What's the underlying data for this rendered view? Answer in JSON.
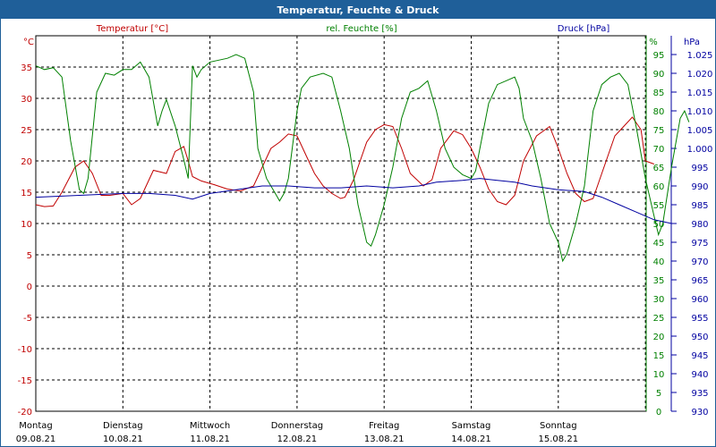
{
  "window": {
    "title": "Temperatur, Feuchte & Druck"
  },
  "colors": {
    "title_bg": "#1f5f99",
    "temperature": "#c00000",
    "humidity": "#008000",
    "pressure": "#0000a0",
    "grid": "#000000"
  },
  "chart_data": {
    "type": "line",
    "title": "Temperatur, Feuchte & Druck",
    "x_range": [
      0,
      7
    ],
    "x_ticks": [
      {
        "x": 0,
        "day": "Montag",
        "date": "09.08.21"
      },
      {
        "x": 1,
        "day": "Dienstag",
        "date": "10.08.21"
      },
      {
        "x": 2,
        "day": "Mittwoch",
        "date": "11.08.21"
      },
      {
        "x": 3,
        "day": "Donnerstag",
        "date": "12.08.21"
      },
      {
        "x": 4,
        "day": "Freitag",
        "date": "13.08.21"
      },
      {
        "x": 5,
        "day": "Samstag",
        "date": "14.08.21"
      },
      {
        "x": 6,
        "day": "Sonntag",
        "date": "15.08.21"
      }
    ],
    "grid": true,
    "axes": {
      "temperature": {
        "label": "Temperatur [°C]",
        "unit": "°C",
        "range": [
          -20,
          40
        ],
        "ticks": [
          "-20",
          "-15",
          "-10",
          "-5",
          "0",
          "5",
          "10",
          "15",
          "20",
          "25",
          "30",
          "35"
        ]
      },
      "humidity": {
        "label": "rel. Feuchte [%]",
        "unit": "%",
        "range": [
          0,
          100
        ],
        "ticks": [
          "0",
          "5",
          "10",
          "15",
          "20",
          "25",
          "30",
          "35",
          "40",
          "45",
          "50",
          "55",
          "60",
          "65",
          "70",
          "75",
          "80",
          "85",
          "90",
          "95"
        ]
      },
      "pressure": {
        "label": "Druck [hPa]",
        "unit": "hPa",
        "range": [
          930,
          1030
        ],
        "ticks": [
          "930",
          "935",
          "940",
          "945",
          "950",
          "955",
          "960",
          "965",
          "970",
          "975",
          "980",
          "985",
          "990",
          "995",
          "1.000",
          "1.005",
          "1.010",
          "1.015",
          "1.020",
          "1.025"
        ]
      }
    },
    "series": [
      {
        "name": "Temperatur [°C]",
        "axis": "temperature",
        "color": "#c00000",
        "points": [
          [
            0,
            13
          ],
          [
            0.1,
            12.7
          ],
          [
            0.2,
            12.8
          ],
          [
            0.3,
            15
          ],
          [
            0.45,
            19
          ],
          [
            0.55,
            20
          ],
          [
            0.65,
            18
          ],
          [
            0.75,
            14.5
          ],
          [
            0.85,
            14.5
          ],
          [
            1,
            14.8
          ],
          [
            1.1,
            13
          ],
          [
            1.2,
            14
          ],
          [
            1.35,
            18.5
          ],
          [
            1.5,
            18
          ],
          [
            1.6,
            21.5
          ],
          [
            1.7,
            22.3
          ],
          [
            1.75,
            20
          ],
          [
            1.8,
            17.5
          ],
          [
            1.9,
            16.8
          ],
          [
            2.05,
            16.2
          ],
          [
            2.2,
            15.5
          ],
          [
            2.35,
            15.2
          ],
          [
            2.5,
            16
          ],
          [
            2.6,
            19
          ],
          [
            2.7,
            22
          ],
          [
            2.8,
            23
          ],
          [
            2.9,
            24.3
          ],
          [
            3,
            24
          ],
          [
            3.1,
            21
          ],
          [
            3.2,
            18
          ],
          [
            3.3,
            16
          ],
          [
            3.4,
            14.8
          ],
          [
            3.5,
            14
          ],
          [
            3.55,
            14.2
          ],
          [
            3.65,
            17
          ],
          [
            3.8,
            23
          ],
          [
            3.9,
            25
          ],
          [
            4.0,
            25.8
          ],
          [
            4.1,
            25.5
          ],
          [
            4.2,
            22
          ],
          [
            4.3,
            18
          ],
          [
            4.45,
            16
          ],
          [
            4.55,
            17
          ],
          [
            4.65,
            22
          ],
          [
            4.8,
            24.8
          ],
          [
            4.9,
            24.2
          ],
          [
            5.0,
            22
          ],
          [
            5.1,
            19
          ],
          [
            5.2,
            15.5
          ],
          [
            5.3,
            13.5
          ],
          [
            5.4,
            13
          ],
          [
            5.5,
            14.5
          ],
          [
            5.6,
            20
          ],
          [
            5.75,
            24
          ],
          [
            5.9,
            25.5
          ],
          [
            6.0,
            22
          ],
          [
            6.1,
            18
          ],
          [
            6.2,
            14.8
          ],
          [
            6.3,
            13.5
          ],
          [
            6.4,
            14
          ],
          [
            6.5,
            18
          ],
          [
            6.65,
            24
          ],
          [
            6.75,
            25.5
          ],
          [
            6.85,
            27
          ],
          [
            6.95,
            25
          ],
          [
            7,
            20
          ],
          [
            7.1,
            19.5
          ]
        ]
      },
      {
        "name": "rel. Feuchte [%]",
        "axis": "humidity",
        "color": "#008000",
        "points": [
          [
            0,
            92
          ],
          [
            0.1,
            91
          ],
          [
            0.2,
            91.5
          ],
          [
            0.3,
            89
          ],
          [
            0.4,
            72
          ],
          [
            0.5,
            59
          ],
          [
            0.55,
            58
          ],
          [
            0.6,
            62
          ],
          [
            0.7,
            85
          ],
          [
            0.8,
            90
          ],
          [
            0.9,
            89.5
          ],
          [
            1,
            91
          ],
          [
            1.1,
            91
          ],
          [
            1.2,
            93
          ],
          [
            1.3,
            89
          ],
          [
            1.4,
            76
          ],
          [
            1.45,
            80
          ],
          [
            1.5,
            83
          ],
          [
            1.6,
            76
          ],
          [
            1.7,
            67
          ],
          [
            1.75,
            62
          ],
          [
            1.8,
            92
          ],
          [
            1.85,
            89
          ],
          [
            1.9,
            91
          ],
          [
            2.0,
            93
          ],
          [
            2.2,
            94
          ],
          [
            2.3,
            95
          ],
          [
            2.4,
            94
          ],
          [
            2.5,
            85
          ],
          [
            2.55,
            70
          ],
          [
            2.65,
            62
          ],
          [
            2.75,
            58
          ],
          [
            2.8,
            56
          ],
          [
            2.85,
            58
          ],
          [
            2.9,
            62
          ],
          [
            3.0,
            80
          ],
          [
            3.05,
            86
          ],
          [
            3.15,
            89
          ],
          [
            3.3,
            90
          ],
          [
            3.4,
            89
          ],
          [
            3.5,
            80
          ],
          [
            3.6,
            70
          ],
          [
            3.7,
            55
          ],
          [
            3.8,
            45
          ],
          [
            3.85,
            44
          ],
          [
            3.9,
            47
          ],
          [
            4.0,
            55
          ],
          [
            4.1,
            65
          ],
          [
            4.2,
            78
          ],
          [
            4.3,
            85
          ],
          [
            4.4,
            86
          ],
          [
            4.5,
            88
          ],
          [
            4.6,
            80
          ],
          [
            4.7,
            70
          ],
          [
            4.8,
            65
          ],
          [
            4.9,
            63
          ],
          [
            5.0,
            62
          ],
          [
            5.05,
            64
          ],
          [
            5.1,
            70
          ],
          [
            5.2,
            82
          ],
          [
            5.3,
            87
          ],
          [
            5.4,
            88
          ],
          [
            5.5,
            89
          ],
          [
            5.55,
            86
          ],
          [
            5.6,
            78
          ],
          [
            5.7,
            72
          ],
          [
            5.8,
            62
          ],
          [
            5.9,
            50
          ],
          [
            6.0,
            45
          ],
          [
            6.05,
            40
          ],
          [
            6.1,
            42
          ],
          [
            6.2,
            50
          ],
          [
            6.3,
            60
          ],
          [
            6.4,
            80
          ],
          [
            6.5,
            87
          ],
          [
            6.6,
            89
          ],
          [
            6.7,
            90
          ],
          [
            6.8,
            87
          ],
          [
            6.9,
            75
          ],
          [
            7.0,
            62
          ],
          [
            7.1,
            52
          ],
          [
            7.15,
            47
          ],
          [
            7.2,
            50
          ],
          [
            7.3,
            65
          ],
          [
            7.4,
            78
          ],
          [
            7.45,
            80
          ],
          [
            7.5,
            77
          ]
        ]
      },
      {
        "name": "Druck [hPa]",
        "axis": "pressure",
        "color": "#0000a0",
        "points": [
          [
            0,
            987
          ],
          [
            0.5,
            987.5
          ],
          [
            1,
            988
          ],
          [
            1.3,
            988
          ],
          [
            1.6,
            987.5
          ],
          [
            1.8,
            986.5
          ],
          [
            2,
            988
          ],
          [
            2.3,
            989
          ],
          [
            2.6,
            990
          ],
          [
            2.9,
            990
          ],
          [
            3.2,
            989.5
          ],
          [
            3.5,
            989.5
          ],
          [
            3.8,
            990
          ],
          [
            4.1,
            989.5
          ],
          [
            4.4,
            990
          ],
          [
            4.6,
            991
          ],
          [
            4.9,
            991.5
          ],
          [
            5.1,
            992
          ],
          [
            5.3,
            991.5
          ],
          [
            5.5,
            991
          ],
          [
            5.7,
            990
          ],
          [
            6.0,
            989
          ],
          [
            6.3,
            988.5
          ],
          [
            6.5,
            987
          ],
          [
            6.7,
            985
          ],
          [
            6.9,
            983
          ],
          [
            7.1,
            981
          ],
          [
            7.3,
            980
          ]
        ]
      }
    ]
  }
}
